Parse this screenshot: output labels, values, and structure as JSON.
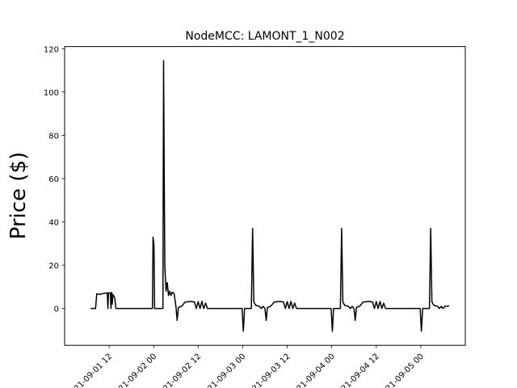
{
  "chart_data": {
    "type": "line",
    "title": "NodeMCC: LAMONT_1_N002",
    "ylabel": "Price ($)",
    "xlabel": "",
    "ylim": [
      -17,
      121
    ],
    "xlim": [
      "2021-09-01T00:00",
      "2021-09-05T12:00"
    ],
    "grid": false,
    "yticks": [
      0,
      20,
      40,
      60,
      80,
      100,
      120
    ],
    "xticks": [
      {
        "t": "2021-09-01T12:00",
        "label": "2021-09-01 12"
      },
      {
        "t": "2021-09-02T00:00",
        "label": "2021-09-02 00"
      },
      {
        "t": "2021-09-02T12:00",
        "label": "2021-09-02 12"
      },
      {
        "t": "2021-09-03T00:00",
        "label": "2021-09-03 00"
      },
      {
        "t": "2021-09-03T12:00",
        "label": "2021-09-03 12"
      },
      {
        "t": "2021-09-04T00:00",
        "label": "2021-09-04 00"
      },
      {
        "t": "2021-09-04T12:00",
        "label": "2021-09-04 12"
      },
      {
        "t": "2021-09-05T00:00",
        "label": "2021-09-05 00"
      }
    ],
    "series": [
      {
        "color": "#000000",
        "points": [
          [
            "2021-09-01T07:00",
            0
          ],
          [
            "2021-09-01T08:20",
            0
          ],
          [
            "2021-09-01T08:40",
            6.8
          ],
          [
            "2021-09-01T09:30",
            6.5
          ],
          [
            "2021-09-01T10:30",
            7
          ],
          [
            "2021-09-01T11:30",
            7.2
          ],
          [
            "2021-09-01T11:40",
            0
          ],
          [
            "2021-09-01T11:50",
            7.3
          ],
          [
            "2021-09-01T12:20",
            7.1
          ],
          [
            "2021-09-01T12:30",
            0
          ],
          [
            "2021-09-01T12:40",
            7.5
          ],
          [
            "2021-09-01T12:50",
            2
          ],
          [
            "2021-09-01T13:00",
            6.5
          ],
          [
            "2021-09-01T13:30",
            5
          ],
          [
            "2021-09-01T13:50",
            0
          ],
          [
            "2021-09-01T23:40",
            0
          ],
          [
            "2021-09-01T23:50",
            33
          ],
          [
            "2021-09-02T00:05",
            29
          ],
          [
            "2021-09-02T00:15",
            0
          ],
          [
            "2021-09-02T02:30",
            0
          ],
          [
            "2021-09-02T02:40",
            114.5
          ],
          [
            "2021-09-02T03:00",
            20
          ],
          [
            "2021-09-02T03:20",
            8
          ],
          [
            "2021-09-02T03:40",
            12
          ],
          [
            "2021-09-02T04:00",
            6
          ],
          [
            "2021-09-02T04:20",
            8
          ],
          [
            "2021-09-02T04:40",
            6
          ],
          [
            "2021-09-02T05:00",
            7.5
          ],
          [
            "2021-09-02T05:30",
            7
          ],
          [
            "2021-09-02T06:00",
            1
          ],
          [
            "2021-09-02T06:20",
            -5.5
          ],
          [
            "2021-09-02T06:40",
            0.5
          ],
          [
            "2021-09-02T07:30",
            1
          ],
          [
            "2021-09-02T08:30",
            3
          ],
          [
            "2021-09-02T10:00",
            3.3
          ],
          [
            "2021-09-02T11:00",
            3
          ],
          [
            "2021-09-02T11:30",
            0
          ],
          [
            "2021-09-02T12:00",
            3.2
          ],
          [
            "2021-09-02T12:30",
            0
          ],
          [
            "2021-09-02T13:00",
            3.3
          ],
          [
            "2021-09-02T13:30",
            0
          ],
          [
            "2021-09-02T14:00",
            2.5
          ],
          [
            "2021-09-02T14:30",
            0
          ],
          [
            "2021-09-02T23:50",
            0
          ],
          [
            "2021-09-03T00:10",
            -10.5
          ],
          [
            "2021-09-03T00:30",
            0
          ],
          [
            "2021-09-03T02:20",
            0
          ],
          [
            "2021-09-03T02:40",
            37
          ],
          [
            "2021-09-03T03:00",
            3
          ],
          [
            "2021-09-03T03:30",
            1.5
          ],
          [
            "2021-09-03T04:30",
            1
          ],
          [
            "2021-09-03T05:00",
            0
          ],
          [
            "2021-09-03T05:30",
            1
          ],
          [
            "2021-09-03T06:00",
            0
          ],
          [
            "2021-09-03T06:20",
            -5.5
          ],
          [
            "2021-09-03T06:40",
            0.5
          ],
          [
            "2021-09-03T07:30",
            1
          ],
          [
            "2021-09-03T08:30",
            3
          ],
          [
            "2021-09-03T10:00",
            3.3
          ],
          [
            "2021-09-03T11:00",
            3
          ],
          [
            "2021-09-03T11:30",
            0
          ],
          [
            "2021-09-03T12:00",
            3.2
          ],
          [
            "2021-09-03T12:30",
            0
          ],
          [
            "2021-09-03T13:00",
            3.3
          ],
          [
            "2021-09-03T13:30",
            0
          ],
          [
            "2021-09-03T14:00",
            2.5
          ],
          [
            "2021-09-03T14:30",
            0
          ],
          [
            "2021-09-03T23:50",
            0
          ],
          [
            "2021-09-04T00:10",
            -10.5
          ],
          [
            "2021-09-04T00:30",
            0
          ],
          [
            "2021-09-04T02:20",
            0
          ],
          [
            "2021-09-04T02:40",
            37
          ],
          [
            "2021-09-04T03:00",
            3
          ],
          [
            "2021-09-04T03:30",
            1.5
          ],
          [
            "2021-09-04T04:30",
            1
          ],
          [
            "2021-09-04T05:00",
            0
          ],
          [
            "2021-09-04T05:30",
            1
          ],
          [
            "2021-09-04T06:00",
            0
          ],
          [
            "2021-09-04T06:20",
            -5.5
          ],
          [
            "2021-09-04T06:40",
            0.5
          ],
          [
            "2021-09-04T07:30",
            1
          ],
          [
            "2021-09-04T08:30",
            3
          ],
          [
            "2021-09-04T10:00",
            3.3
          ],
          [
            "2021-09-04T11:00",
            3
          ],
          [
            "2021-09-04T11:30",
            0
          ],
          [
            "2021-09-04T12:00",
            3.2
          ],
          [
            "2021-09-04T12:30",
            0
          ],
          [
            "2021-09-04T13:00",
            3.3
          ],
          [
            "2021-09-04T13:30",
            0
          ],
          [
            "2021-09-04T14:00",
            2.5
          ],
          [
            "2021-09-04T14:30",
            0
          ],
          [
            "2021-09-04T23:50",
            0
          ],
          [
            "2021-09-05T00:10",
            -10.5
          ],
          [
            "2021-09-05T00:30",
            0
          ],
          [
            "2021-09-05T02:20",
            0
          ],
          [
            "2021-09-05T02:40",
            37
          ],
          [
            "2021-09-05T03:00",
            3
          ],
          [
            "2021-09-05T03:30",
            1.5
          ],
          [
            "2021-09-05T04:30",
            1
          ],
          [
            "2021-09-05T05:00",
            0
          ],
          [
            "2021-09-05T05:30",
            1
          ],
          [
            "2021-09-05T06:00",
            0
          ],
          [
            "2021-09-05T06:30",
            1
          ],
          [
            "2021-09-05T07:40",
            1.2
          ]
        ]
      }
    ]
  }
}
